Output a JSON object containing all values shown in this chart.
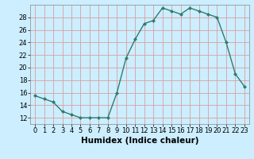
{
  "x": [
    0,
    1,
    2,
    3,
    4,
    5,
    6,
    7,
    8,
    9,
    10,
    11,
    12,
    13,
    14,
    15,
    16,
    17,
    18,
    19,
    20,
    21,
    22,
    23
  ],
  "y": [
    15.5,
    15.0,
    14.5,
    13.0,
    12.5,
    12.0,
    12.0,
    12.0,
    12.0,
    16.0,
    21.5,
    24.5,
    27.0,
    27.5,
    29.5,
    29.0,
    28.5,
    29.5,
    29.0,
    28.5,
    28.0,
    24.0,
    19.0,
    17.0
  ],
  "line_color": "#2e7d6e",
  "marker": "D",
  "marker_size": 2.0,
  "bg_color": "#cceeff",
  "grid_color": "#d8a0a0",
  "xlabel": "Humidex (Indice chaleur)",
  "xlabel_fontsize": 7.5,
  "xlim": [
    -0.5,
    23.5
  ],
  "ylim": [
    11,
    30
  ],
  "yticks": [
    12,
    14,
    16,
    18,
    20,
    22,
    24,
    26,
    28
  ],
  "xticks": [
    0,
    1,
    2,
    3,
    4,
    5,
    6,
    7,
    8,
    9,
    10,
    11,
    12,
    13,
    14,
    15,
    16,
    17,
    18,
    19,
    20,
    21,
    22,
    23
  ],
  "xtick_labels": [
    "0",
    "1",
    "2",
    "3",
    "4",
    "5",
    "6",
    "7",
    "8",
    "9",
    "10",
    "11",
    "12",
    "13",
    "14",
    "15",
    "16",
    "17",
    "18",
    "19",
    "20",
    "21",
    "22",
    "23"
  ],
  "tick_fontsize": 6,
  "line_width": 1.0
}
